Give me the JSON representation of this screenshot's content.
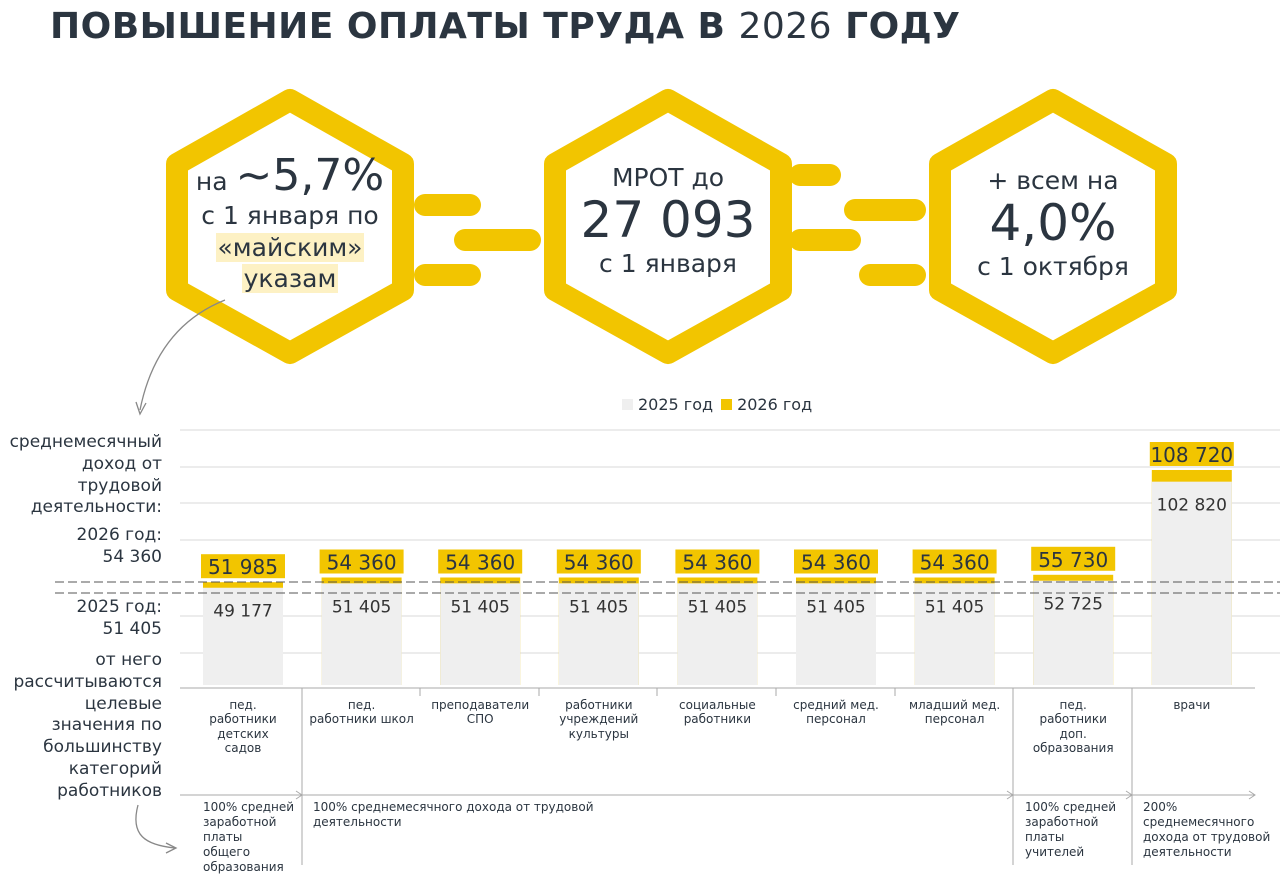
{
  "title": {
    "start": "ПОВЫШЕНИЕ ОПЛАТЫ ТРУДА В",
    "year": "2026",
    "end": "ГОДУ"
  },
  "hexagons": [
    {
      "prefix": "на",
      "big": "~5,7%",
      "line2": "с 1 января по",
      "highlight": "«майским»",
      "line4": "указам"
    },
    {
      "line1": "МРОТ до",
      "big": "27 093",
      "line3": "с 1 января"
    },
    {
      "line1": "+ всем на",
      "big": "4,0%",
      "line3": "с 1 октября"
    }
  ],
  "left_notes": {
    "income": "среднемесячный\nдоход от\nтрудовой\nдеятельности:",
    "y2026": "2026 год:\n54 360",
    "y2025": "2025 год:\n51 405",
    "basis": "от него\nрассчитываются\nцелевые\nзначения по\nбольшинству\nкатегорий\nработников"
  },
  "chart_data": {
    "type": "bar",
    "categories": [
      "пед.\nработники\nдетских\nсадов",
      "пед.\nработники школ",
      "преподаватели\nСПО",
      "работники\nучреждений\nкультуры",
      "социальные\nработники",
      "средний мед.\nперсонал",
      "младший мед.\nперсонал",
      "пед.\nработники\nдоп.\nобразования",
      "врачи"
    ],
    "series": [
      {
        "name": "2025 год",
        "color": "#efefef",
        "values": [
          49177,
          51405,
          51405,
          51405,
          51405,
          51405,
          51405,
          52725,
          102820
        ],
        "value_labels": [
          "49 177",
          "51 405",
          "51 405",
          "51 405",
          "51 405",
          "51 405",
          "51 405",
          "52 725",
          "102 820"
        ]
      },
      {
        "name": "2026 год",
        "color": "#f2c500",
        "values": [
          51985,
          54360,
          54360,
          54360,
          54360,
          54360,
          54360,
          55730,
          108720
        ],
        "value_labels": [
          "51 985",
          "54 360",
          "54 360",
          "54 360",
          "54 360",
          "54 360",
          "54 360",
          "55 730",
          "108 720"
        ]
      }
    ],
    "legend": "top"
  },
  "bottom_notes": [
    "100% средней\nзаработной\nплаты\nобщего\nобразования",
    "100% среднемесячного дохода от трудовой\nдеятельности",
    "100% средней\nзаработной\nплаты\nучителей",
    "200%\nсреднемесячного\nдохода от трудовой\nдеятельности"
  ]
}
